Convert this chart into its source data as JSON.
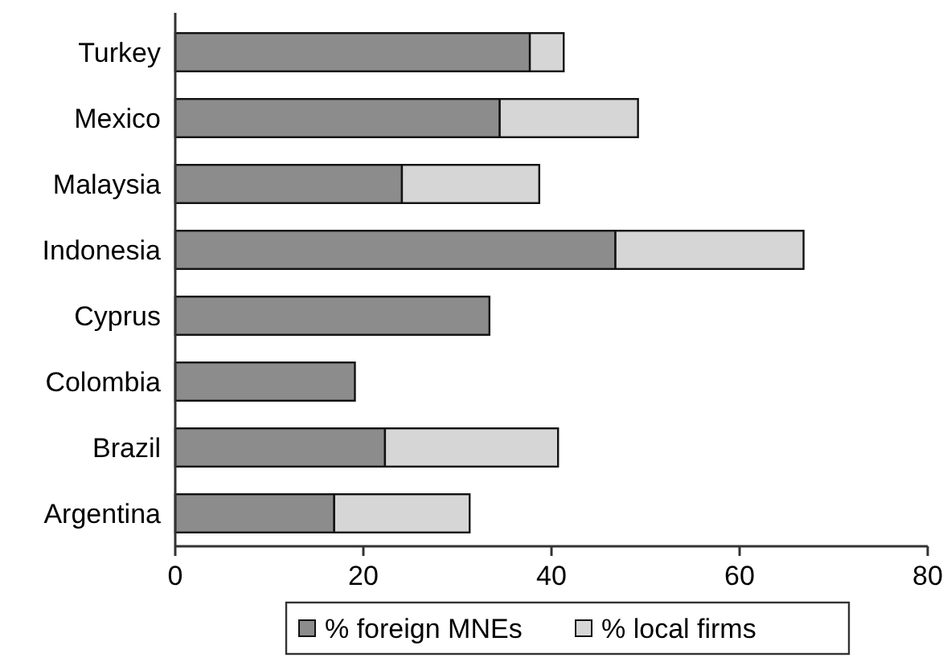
{
  "chart_data": {
    "type": "bar",
    "orientation": "horizontal",
    "stacked": true,
    "categories": [
      "Turkey",
      "Mexico",
      "Malaysia",
      "Indonesia",
      "Cyprus",
      "Colombia",
      "Brazil",
      "Argentina"
    ],
    "series": [
      {
        "name": "% foreign MNEs",
        "color": "#8c8c8c",
        "values": [
          37.7,
          34.5,
          24.1,
          46.8,
          33.4,
          19.1,
          22.3,
          16.9
        ]
      },
      {
        "name": "% local firms",
        "color": "#d6d6d6",
        "values": [
          3.6,
          14.7,
          14.6,
          20.0,
          null,
          null,
          18.4,
          14.4
        ]
      }
    ],
    "xlim": [
      0,
      80
    ],
    "xticks": [
      0,
      20,
      40,
      60,
      80
    ],
    "grid": false,
    "legend": "bottom"
  }
}
